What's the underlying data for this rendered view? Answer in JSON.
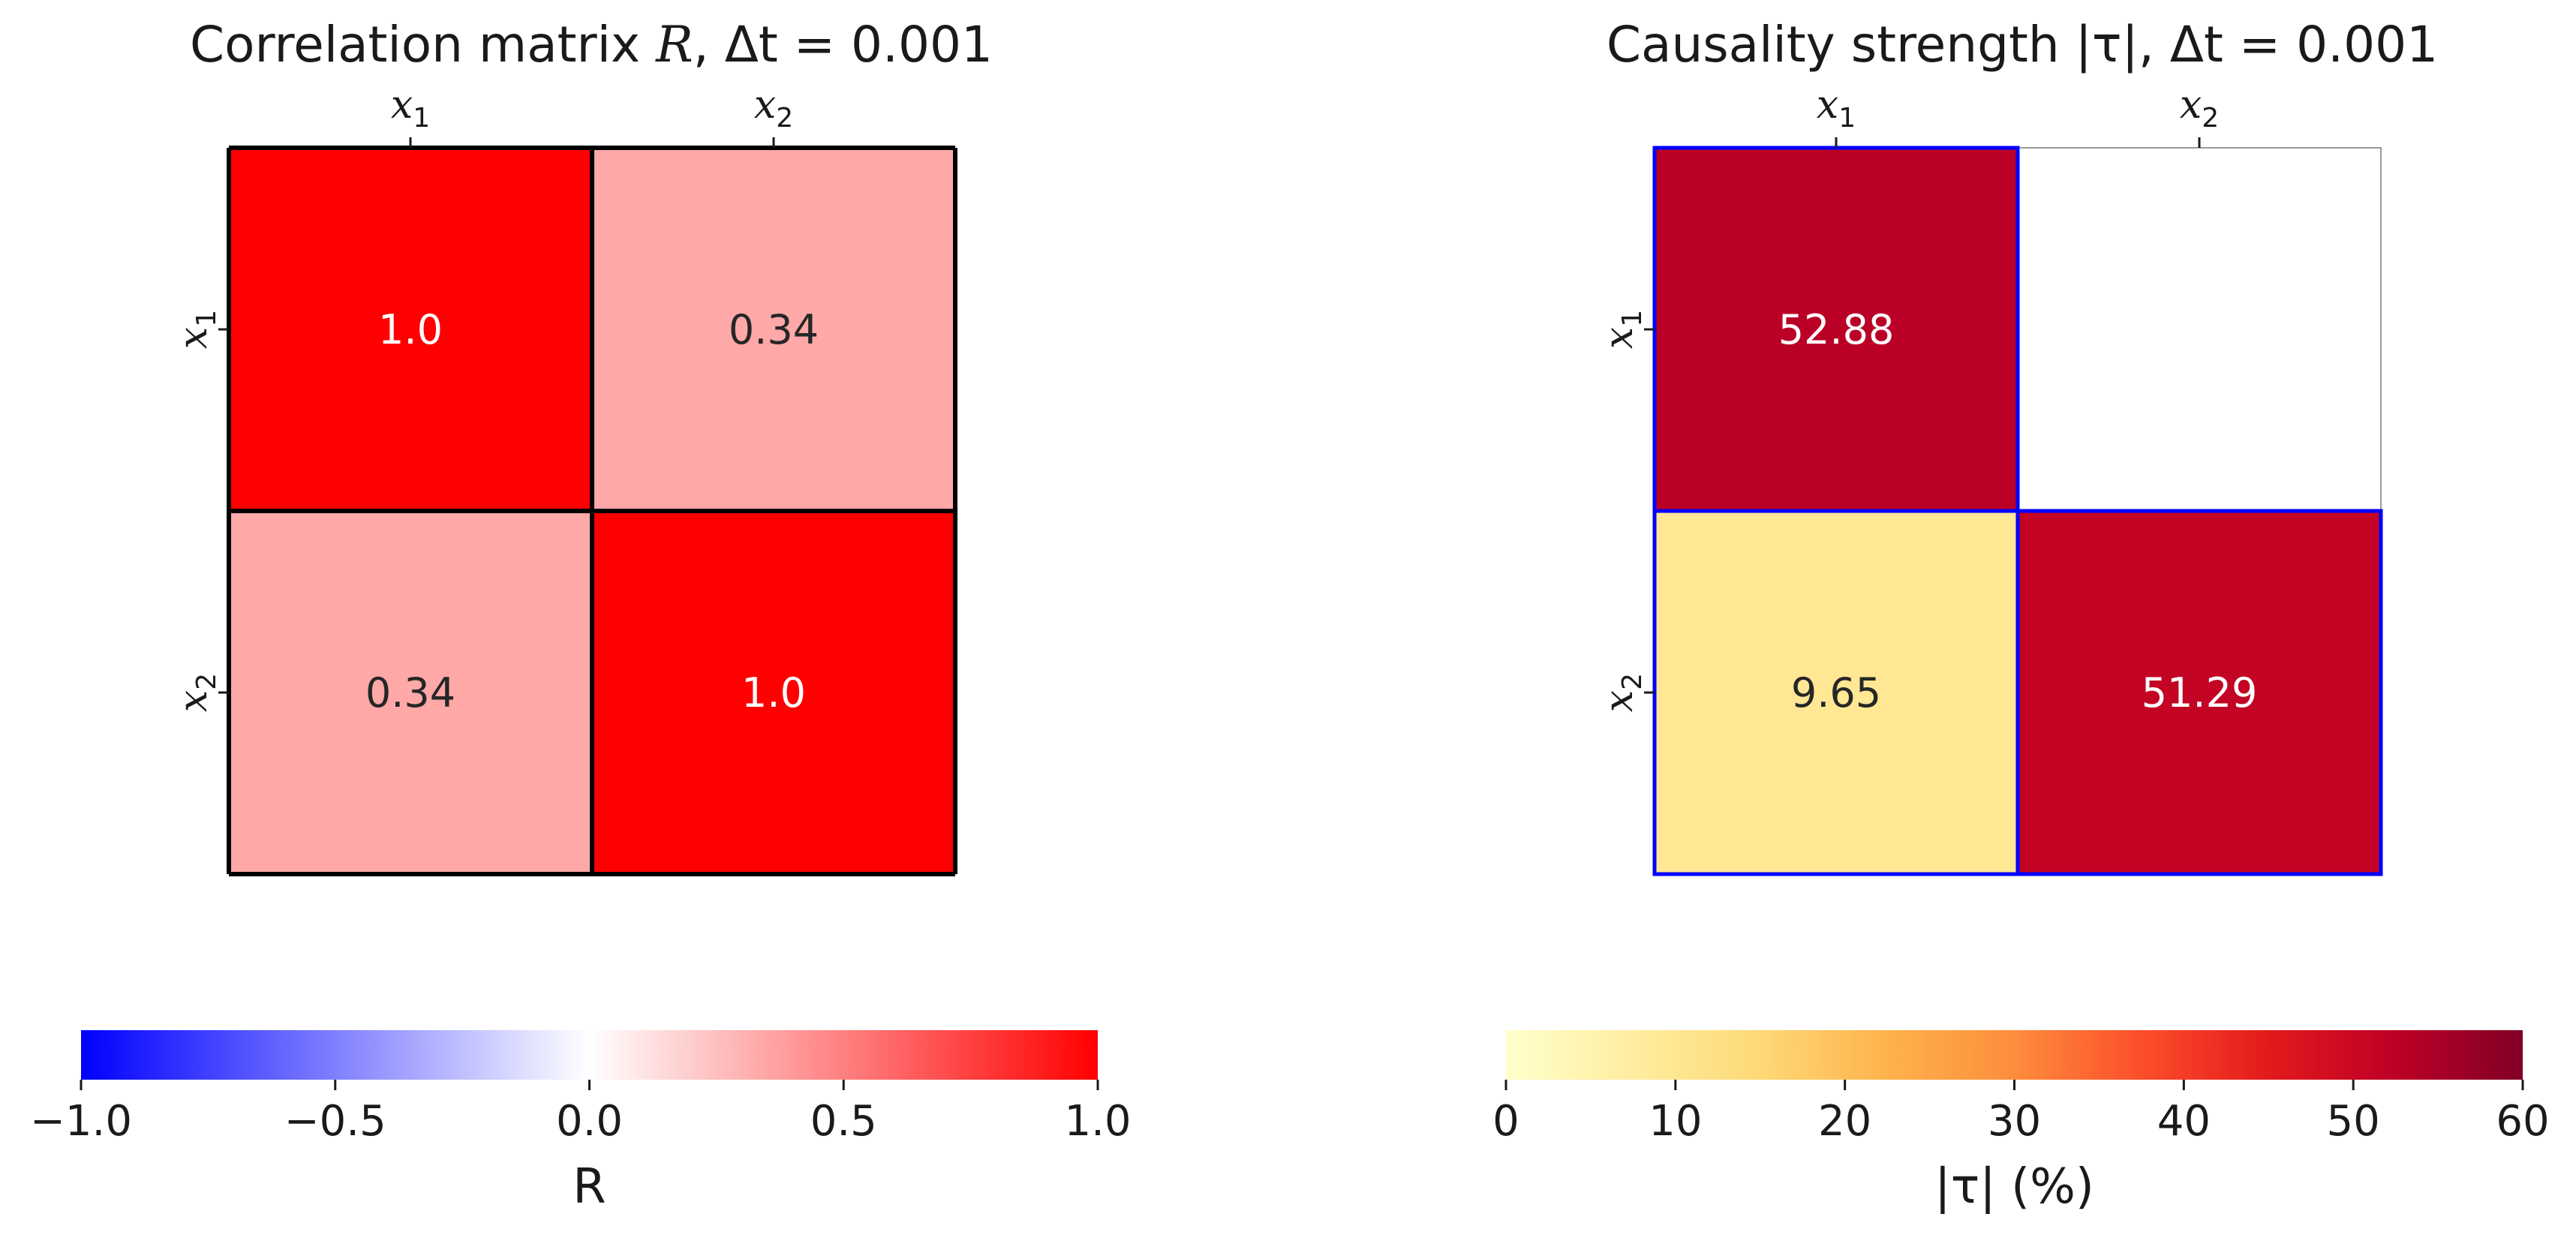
{
  "chart_data": [
    {
      "type": "heatmap",
      "title": "Correlation matrix R, Δt = 0.001",
      "title_parts": {
        "prefix": "Correlation matrix ",
        "var": "R",
        "suffix": ", Δt = 0.001"
      },
      "rows": [
        "x1",
        "x2"
      ],
      "cols": [
        "x1",
        "x2"
      ],
      "values": [
        [
          1.0,
          0.34
        ],
        [
          0.34,
          1.0
        ]
      ],
      "cell_labels": [
        [
          "1.0",
          "0.34"
        ],
        [
          "0.34",
          "1.0"
        ]
      ],
      "cell_border_color": "#000000",
      "colorbar": {
        "label": "R",
        "vmin": -1.0,
        "vmax": 1.0,
        "ticks": [
          -1.0,
          -0.5,
          0.0,
          0.5,
          1.0
        ],
        "tick_labels": [
          "−1.0",
          "−0.5",
          "0.0",
          "0.5",
          "1.0"
        ],
        "colormap": "bwr",
        "colors": [
          "#0000ff",
          "#ffffff",
          "#ff0000"
        ]
      }
    },
    {
      "type": "heatmap",
      "title": "Causality strength |τ|, Δt = 0.001",
      "title_parts": {
        "prefix": "Causality strength |τ|, ",
        "var": "",
        "suffix": "Δt = 0.001"
      },
      "rows": [
        "x1",
        "x2"
      ],
      "cols": [
        "x1",
        "x2"
      ],
      "values": [
        [
          52.88,
          null
        ],
        [
          9.65,
          51.29
        ]
      ],
      "cell_labels": [
        [
          "52.88",
          ""
        ],
        [
          "9.65",
          "51.29"
        ]
      ],
      "cell_border_color": "#0000ff",
      "colorbar": {
        "label": "|τ| (%)",
        "vmin": 0,
        "vmax": 60,
        "ticks": [
          0,
          10,
          20,
          30,
          40,
          50,
          60
        ],
        "tick_labels": [
          "0",
          "10",
          "20",
          "30",
          "40",
          "50",
          "60"
        ],
        "colormap": "YlOrRd",
        "colors": [
          "#ffffcc",
          "#ffeda0",
          "#fed976",
          "#feb24c",
          "#fd8d3c",
          "#fc4e2a",
          "#e31a1c",
          "#bd0026",
          "#800026"
        ]
      }
    }
  ]
}
